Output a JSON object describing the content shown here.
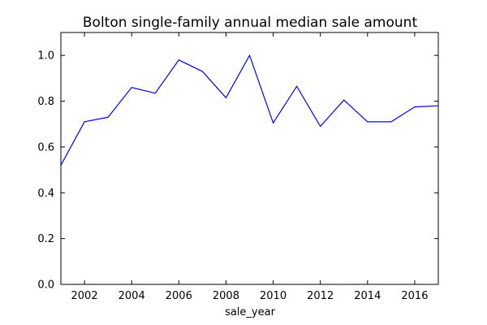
{
  "chart_data": {
    "type": "line",
    "title": "Bolton single-family annual median sale amount",
    "xlabel": "sale_year",
    "ylabel": "",
    "xlim": [
      2001,
      2017
    ],
    "ylim": [
      0.0,
      1.1
    ],
    "x_ticks": [
      2002,
      2004,
      2006,
      2008,
      2010,
      2012,
      2014,
      2016
    ],
    "x_tick_labels": [
      "2002",
      "2004",
      "2006",
      "2008",
      "2010",
      "2012",
      "2014",
      "2016"
    ],
    "y_ticks": [
      0.0,
      0.2,
      0.4,
      0.6,
      0.8,
      1.0
    ],
    "y_tick_labels": [
      "0.0",
      "0.2",
      "0.4",
      "0.6",
      "0.8",
      "1.0"
    ],
    "grid": false,
    "series": [
      {
        "color": "#0000ff",
        "x": [
          2001,
          2002,
          2003,
          2004,
          2005,
          2006,
          2007,
          2008,
          2009,
          2010,
          2011,
          2012,
          2013,
          2014,
          2015,
          2016,
          2017
        ],
        "y": [
          0.52,
          0.71,
          0.73,
          0.86,
          0.835,
          0.98,
          0.93,
          0.815,
          1.0,
          0.705,
          0.865,
          0.69,
          0.805,
          0.71,
          0.71,
          0.775,
          0.78
        ]
      }
    ]
  }
}
